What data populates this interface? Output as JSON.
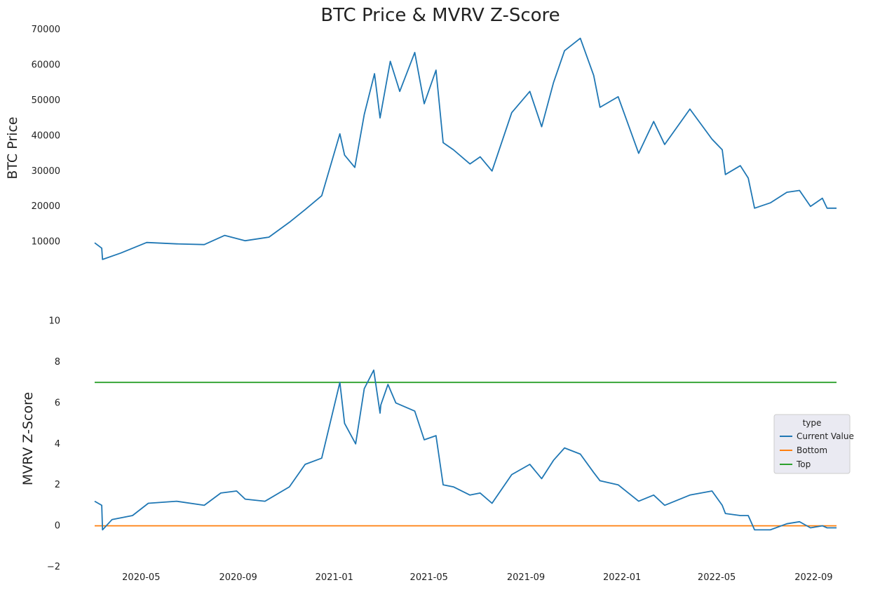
{
  "chart_data": [
    {
      "type": "line",
      "title": "BTC Price & MVRV Z-Score",
      "ylabel": "BTC  Price",
      "xlabel": "",
      "ylim": [
        3000,
        70000
      ],
      "yticks": [
        10000,
        20000,
        30000,
        40000,
        50000,
        60000,
        70000
      ],
      "xlim": [
        "2020-03-03",
        "2022-09-30"
      ],
      "grid": false,
      "series": [
        {
          "color": "#1f77b4",
          "x": [
            "2020-03-03",
            "2020-03-12",
            "2020-03-13",
            "2020-04-05",
            "2020-05-08",
            "2020-06-15",
            "2020-07-20",
            "2020-08-15",
            "2020-09-10",
            "2020-10-10",
            "2020-11-05",
            "2020-11-25",
            "2020-12-16",
            "2021-01-08",
            "2021-01-14",
            "2021-01-27",
            "2021-02-08",
            "2021-02-21",
            "2021-02-28",
            "2021-03-13",
            "2021-03-25",
            "2021-04-13",
            "2021-04-25",
            "2021-05-10",
            "2021-05-19",
            "2021-06-01",
            "2021-06-22",
            "2021-07-05",
            "2021-07-20",
            "2021-08-14",
            "2021-09-06",
            "2021-09-21",
            "2021-10-06",
            "2021-10-20",
            "2021-11-09",
            "2021-11-26",
            "2021-12-04",
            "2021-12-27",
            "2022-01-22",
            "2022-02-10",
            "2022-02-24",
            "2022-03-28",
            "2022-04-25",
            "2022-05-08",
            "2022-05-12",
            "2022-05-31",
            "2022-06-10",
            "2022-06-18",
            "2022-07-08",
            "2022-07-29",
            "2022-08-14",
            "2022-08-28",
            "2022-09-12",
            "2022-09-18",
            "2022-09-30"
          ],
          "values": [
            9700,
            8200,
            5000,
            6800,
            9800,
            9400,
            9200,
            11800,
            10300,
            11300,
            15500,
            19100,
            23000,
            40500,
            34500,
            31000,
            46000,
            57500,
            45000,
            61000,
            52500,
            63500,
            49000,
            58500,
            38000,
            36000,
            32000,
            34000,
            30000,
            46500,
            52500,
            42500,
            55000,
            64000,
            67500,
            57000,
            48000,
            51000,
            35000,
            44000,
            37500,
            47500,
            39000,
            36000,
            29000,
            31500,
            28000,
            19500,
            21000,
            24000,
            24500,
            20000,
            22300,
            19500,
            19500
          ]
        }
      ]
    },
    {
      "type": "line",
      "ylabel": "MVRV Z-Score",
      "xlabel": "",
      "ylim": [
        -2,
        10.5
      ],
      "yticks": [
        -2,
        0,
        2,
        4,
        6,
        8,
        10
      ],
      "xlim": [
        "2020-03-03",
        "2022-09-30"
      ],
      "xticks": [
        "2020-05-01",
        "2020-09-01",
        "2021-01-01",
        "2021-05-01",
        "2021-09-01",
        "2022-01-01",
        "2022-05-01",
        "2022-09-01"
      ],
      "xticklabels": [
        "2020-05",
        "2020-09",
        "2021-01",
        "2021-05",
        "2021-09",
        "2022-01",
        "2022-05",
        "2022-09"
      ],
      "grid": false,
      "legend": {
        "title": "type",
        "placement": "center-right",
        "entries": [
          "Current Value",
          "Bottom",
          "Top"
        ]
      },
      "series": [
        {
          "name": "Current Value",
          "color": "#1f77b4",
          "x": [
            "2020-03-03",
            "2020-03-12",
            "2020-03-13",
            "2020-03-25",
            "2020-04-20",
            "2020-05-10",
            "2020-06-15",
            "2020-07-20",
            "2020-08-10",
            "2020-08-30",
            "2020-09-10",
            "2020-10-05",
            "2020-11-05",
            "2020-11-25",
            "2020-12-16",
            "2021-01-08",
            "2021-01-14",
            "2021-01-28",
            "2021-02-08",
            "2021-02-20",
            "2021-02-28",
            "2021-03-01",
            "2021-03-10",
            "2021-03-20",
            "2021-04-13",
            "2021-04-25",
            "2021-05-10",
            "2021-05-19",
            "2021-06-01",
            "2021-06-22",
            "2021-07-05",
            "2021-07-20",
            "2021-08-14",
            "2021-09-06",
            "2021-09-21",
            "2021-10-06",
            "2021-10-20",
            "2021-11-09",
            "2021-11-26",
            "2021-12-04",
            "2021-12-27",
            "2022-01-22",
            "2022-02-10",
            "2022-02-24",
            "2022-03-28",
            "2022-04-25",
            "2022-05-08",
            "2022-05-12",
            "2022-05-31",
            "2022-06-10",
            "2022-06-18",
            "2022-07-08",
            "2022-07-29",
            "2022-08-14",
            "2022-08-28",
            "2022-09-12",
            "2022-09-18",
            "2022-09-30"
          ],
          "values": [
            1.2,
            1.0,
            -0.2,
            0.3,
            0.5,
            1.1,
            1.2,
            1.0,
            1.6,
            1.7,
            1.3,
            1.2,
            1.9,
            3.0,
            3.3,
            7.0,
            5.0,
            4.0,
            6.7,
            7.6,
            5.5,
            5.9,
            6.9,
            6.0,
            5.6,
            4.2,
            4.4,
            2.0,
            1.9,
            1.5,
            1.6,
            1.1,
            2.5,
            3.0,
            2.3,
            3.2,
            3.8,
            3.5,
            2.6,
            2.2,
            2.0,
            1.2,
            1.5,
            1.0,
            1.5,
            1.7,
            1.0,
            0.6,
            0.5,
            0.5,
            -0.2,
            -0.2,
            0.1,
            0.2,
            -0.1,
            0.0,
            -0.1,
            -0.1
          ]
        },
        {
          "name": "Bottom",
          "color": "#ff7f0e",
          "x": [
            "2020-03-03",
            "2022-09-30"
          ],
          "values": [
            0,
            0
          ]
        },
        {
          "name": "Top",
          "color": "#2ca02c",
          "x": [
            "2020-03-03",
            "2022-09-30"
          ],
          "values": [
            7,
            7
          ]
        }
      ]
    }
  ]
}
